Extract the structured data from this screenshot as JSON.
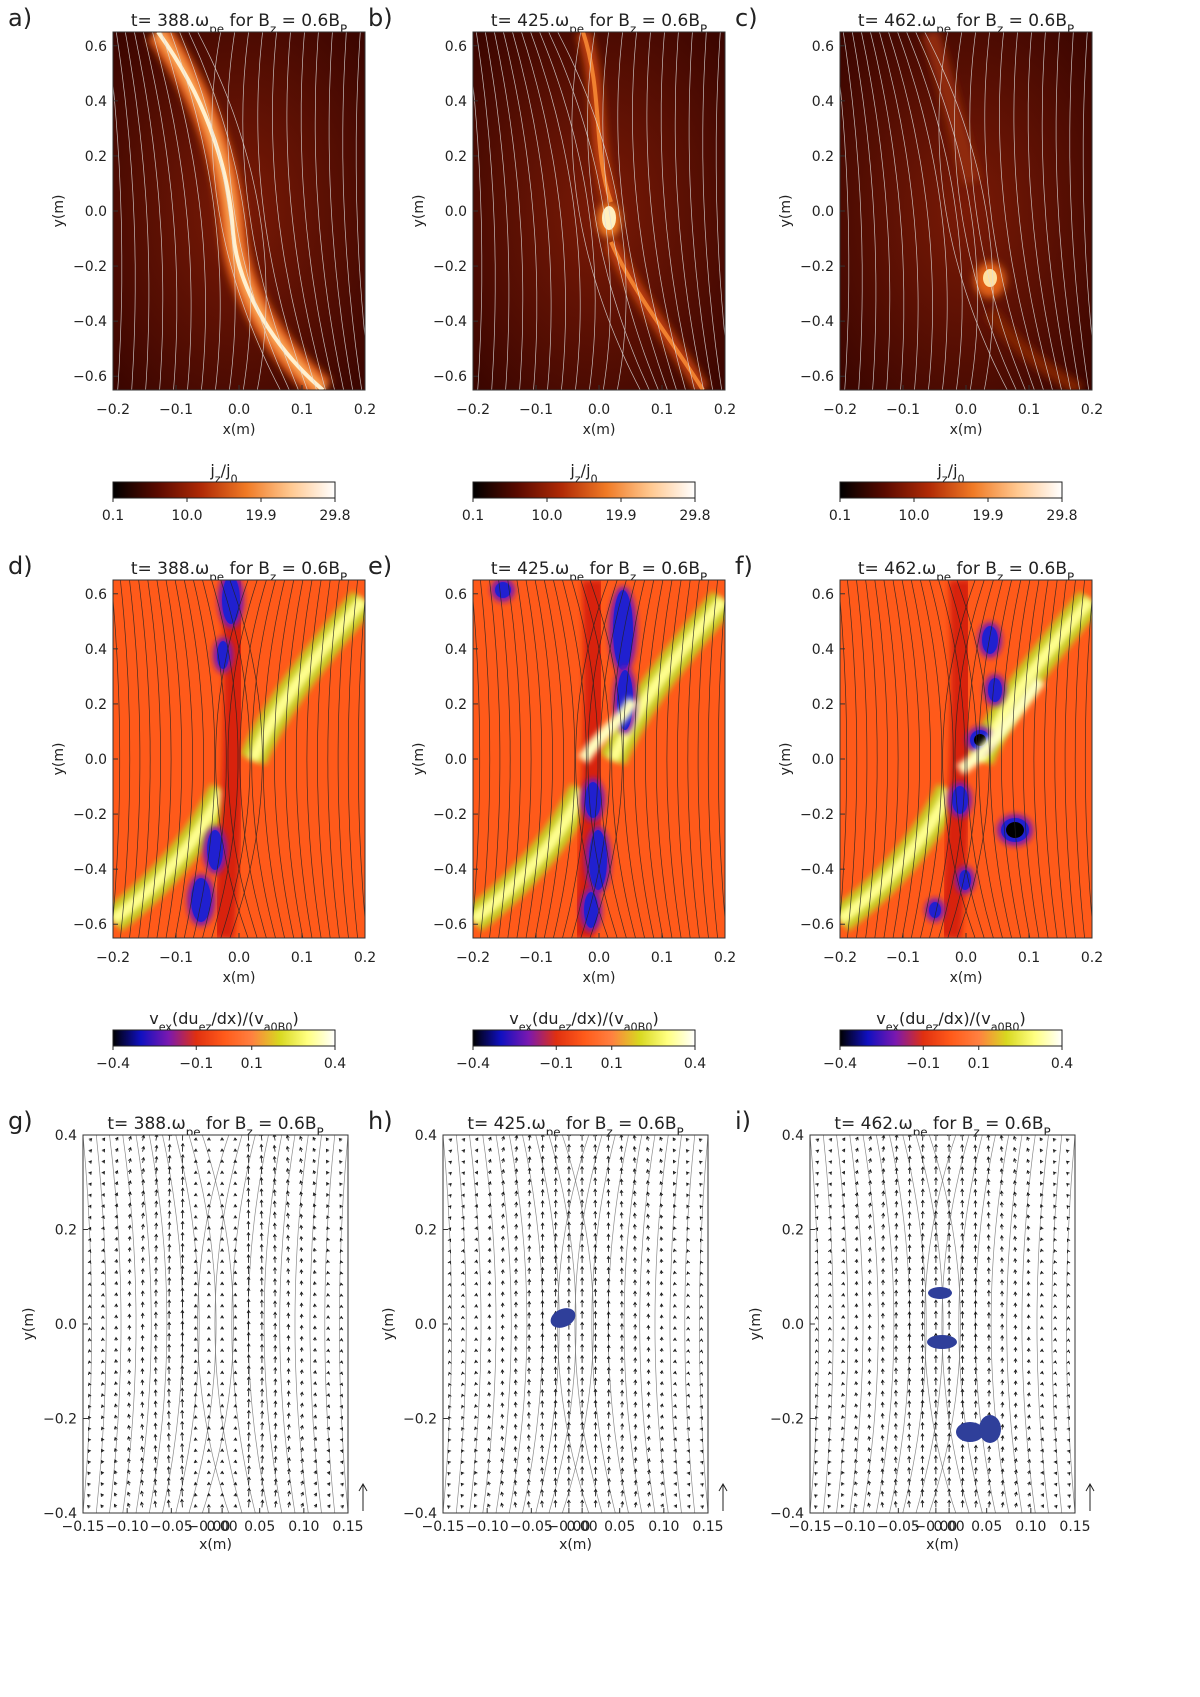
{
  "figure": {
    "rows": [
      {
        "quantity": "jz",
        "colorbar": {
          "title": "j_z/j_0",
          "ticks": [
            "0.1",
            "10.0",
            "19.9",
            "29.8"
          ],
          "colors": [
            "#000000",
            "#5a0a00",
            "#b02a05",
            "#f07a25",
            "#ffc890",
            "#ffffff"
          ]
        },
        "panels": [
          {
            "label": "a)",
            "title": "t= 388.ω_pe for B_z = 0.6B_P",
            "time": 388,
            "shape": "diagonal-sheet"
          },
          {
            "label": "b)",
            "title": "t= 425.ω_pe for B_z = 0.6B_P",
            "time": 425,
            "shape": "sheet-with-island"
          },
          {
            "label": "c)",
            "title": "t= 462.ω_pe for B_z = 0.6B_P",
            "time": 462,
            "shape": "x-point-island"
          }
        ],
        "x_label": "x(m)",
        "y_label": "y(m)",
        "xlim": [
          -0.2,
          0.2
        ],
        "ylim": [
          -0.65,
          0.65
        ],
        "x_ticks": [
          "−0.2",
          "−0.1",
          "0.0",
          "0.1",
          "0.2"
        ],
        "y_ticks": [
          "−0.6",
          "−0.4",
          "−0.2",
          "0.0",
          "0.2",
          "0.4",
          "0.6"
        ],
        "field_line_color": "#dddddd"
      },
      {
        "quantity": "energy-transfer",
        "colorbar": {
          "title": "v_ex(du_ez/dx)/(v_a0B_0)",
          "ticks": [
            "−0.4",
            "−0.1",
            "0.1",
            "0.4"
          ],
          "colors": [
            "#000000",
            "#1010c0",
            "#7a18b0",
            "#e03010",
            "#ff5a1a",
            "#ff8040",
            "#d8d820",
            "#ffff80",
            "#ffffff"
          ]
        },
        "panels": [
          {
            "label": "d)",
            "title": "t= 388.ω_pe for B_z = 0.6B_P",
            "time": 388
          },
          {
            "label": "e)",
            "title": "t= 425.ω_pe for B_z = 0.6B_P",
            "time": 425
          },
          {
            "label": "f)",
            "title": "t= 462.ω_pe for B_z = 0.6B_P",
            "time": 462
          }
        ],
        "x_label": "x(m)",
        "y_label": "y(m)",
        "xlim": [
          -0.2,
          0.2
        ],
        "ylim": [
          -0.65,
          0.65
        ],
        "x_ticks": [
          "−0.2",
          "−0.1",
          "0.0",
          "0.1",
          "0.2"
        ],
        "y_ticks": [
          "−0.6",
          "−0.4",
          "−0.2",
          "0.0",
          "0.2",
          "0.4",
          "0.6"
        ],
        "background": "#ff5a1a",
        "field_line_color": "#222222"
      },
      {
        "quantity": "velocity-vectors",
        "panels": [
          {
            "label": "g)",
            "title": "t= 388.ω_pe for B_z = 0.6B_P",
            "time": 388
          },
          {
            "label": "h)",
            "title": "t= 425.ω_pe for B_z = 0.6B_P",
            "time": 425
          },
          {
            "label": "i)",
            "title": "t= 462.ω_pe for B_z = 0.6B_P",
            "time": 462
          }
        ],
        "x_label": "x(m)",
        "y_label": "y(m)",
        "xlim": [
          -0.15,
          0.15
        ],
        "ylim": [
          -0.4,
          0.4
        ],
        "x_ticks": [
          "−0.15",
          "−0.10",
          "−0.05",
          "−0.00",
          "0.00",
          "0.05",
          "0.10",
          "0.15"
        ],
        "y_ticks": [
          "−0.4",
          "−0.2",
          "0.0",
          "0.2",
          "0.4"
        ],
        "island_color": "#2f3f9a"
      }
    ]
  }
}
